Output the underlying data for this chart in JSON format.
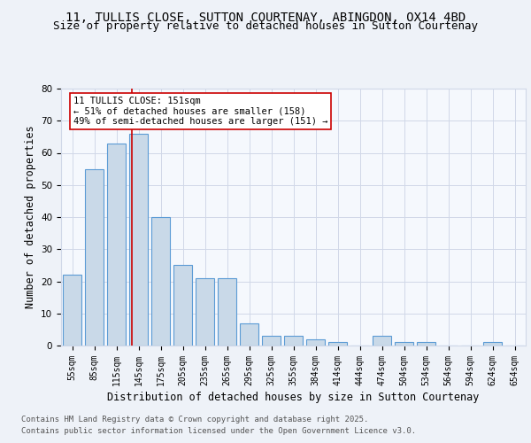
{
  "title_line1": "11, TULLIS CLOSE, SUTTON COURTENAY, ABINGDON, OX14 4BD",
  "title_line2": "Size of property relative to detached houses in Sutton Courtenay",
  "xlabel": "Distribution of detached houses by size in Sutton Courtenay",
  "ylabel": "Number of detached properties",
  "categories": [
    "55sqm",
    "85sqm",
    "115sqm",
    "145sqm",
    "175sqm",
    "205sqm",
    "235sqm",
    "265sqm",
    "295sqm",
    "325sqm",
    "355sqm",
    "384sqm",
    "414sqm",
    "444sqm",
    "474sqm",
    "504sqm",
    "534sqm",
    "564sqm",
    "594sqm",
    "624sqm",
    "654sqm"
  ],
  "values": [
    22,
    55,
    63,
    66,
    40,
    25,
    21,
    21,
    7,
    3,
    3,
    2,
    1,
    0,
    3,
    1,
    1,
    0,
    0,
    1,
    0
  ],
  "bar_color": "#c9d9e8",
  "bar_edge_color": "#5b9bd5",
  "grid_color": "#d0d8e8",
  "background_color": "#eef2f8",
  "plot_bg_color": "#f5f8fd",
  "annotation_text": "11 TULLIS CLOSE: 151sqm\n← 51% of detached houses are smaller (158)\n49% of semi-detached houses are larger (151) →",
  "vline_color": "#cc0000",
  "annotation_box_color": "#cc0000",
  "ylim": [
    0,
    80
  ],
  "yticks": [
    0,
    10,
    20,
    30,
    40,
    50,
    60,
    70,
    80
  ],
  "footer_line1": "Contains HM Land Registry data © Crown copyright and database right 2025.",
  "footer_line2": "Contains public sector information licensed under the Open Government Licence v3.0.",
  "title_fontsize": 10,
  "subtitle_fontsize": 9,
  "axis_label_fontsize": 8.5,
  "tick_fontsize": 7,
  "annotation_fontsize": 7.5,
  "footer_fontsize": 6.5
}
